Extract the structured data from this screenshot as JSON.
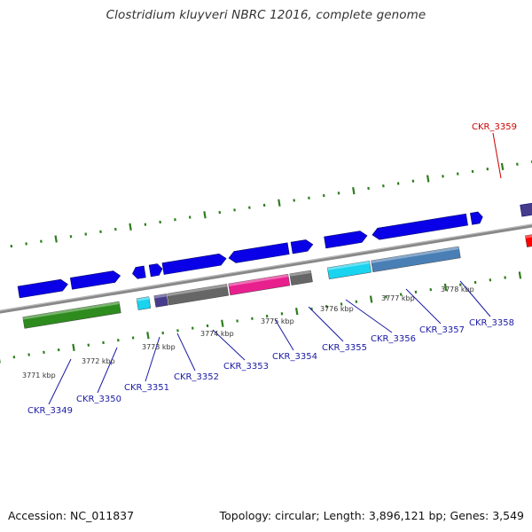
{
  "header": {
    "title": "Clostridium kluyveri NBRC 12016, complete genome"
  },
  "footer": {
    "accession": "Accession: NC_011837",
    "topology": "Topology: circular; Length: 3,896,121 bp; Genes: 3,549"
  },
  "colors": {
    "label_default": "#1a1aa6",
    "label_highlight": "#cc0000",
    "backbone": "#888888",
    "tick": "#2e7d1e",
    "gene_blue": "#0a00e8",
    "gene_green": "#2e8b1e",
    "gene_gray": "#666666",
    "gene_lightgray": "#bdbdbd",
    "gene_cyan": "#19d3ef",
    "gene_magenta": "#e8208e",
    "gene_steelblue": "#4a7fb5",
    "gene_darkslate": "#473c8b",
    "gene_red": "#ff0000"
  },
  "scale_ticks": [
    {
      "label": "3771 kbp"
    },
    {
      "label": "3772 kbp"
    },
    {
      "label": "3773 kbp"
    },
    {
      "label": "3774 kbp"
    },
    {
      "label": "3775 kbp"
    },
    {
      "label": "3776 kbp"
    },
    {
      "label": "3777 kbp"
    },
    {
      "label": "3778 kbp"
    }
  ],
  "genes": [
    {
      "locus": "CKR_3349"
    },
    {
      "locus": "CKR_3350"
    },
    {
      "locus": "CKR_3351"
    },
    {
      "locus": "CKR_3352"
    },
    {
      "locus": "CKR_3353"
    },
    {
      "locus": "CKR_3354"
    },
    {
      "locus": "CKR_3355"
    },
    {
      "locus": "CKR_3356"
    },
    {
      "locus": "CKR_3357"
    },
    {
      "locus": "CKR_3358"
    },
    {
      "locus": "CKR_3359"
    }
  ]
}
